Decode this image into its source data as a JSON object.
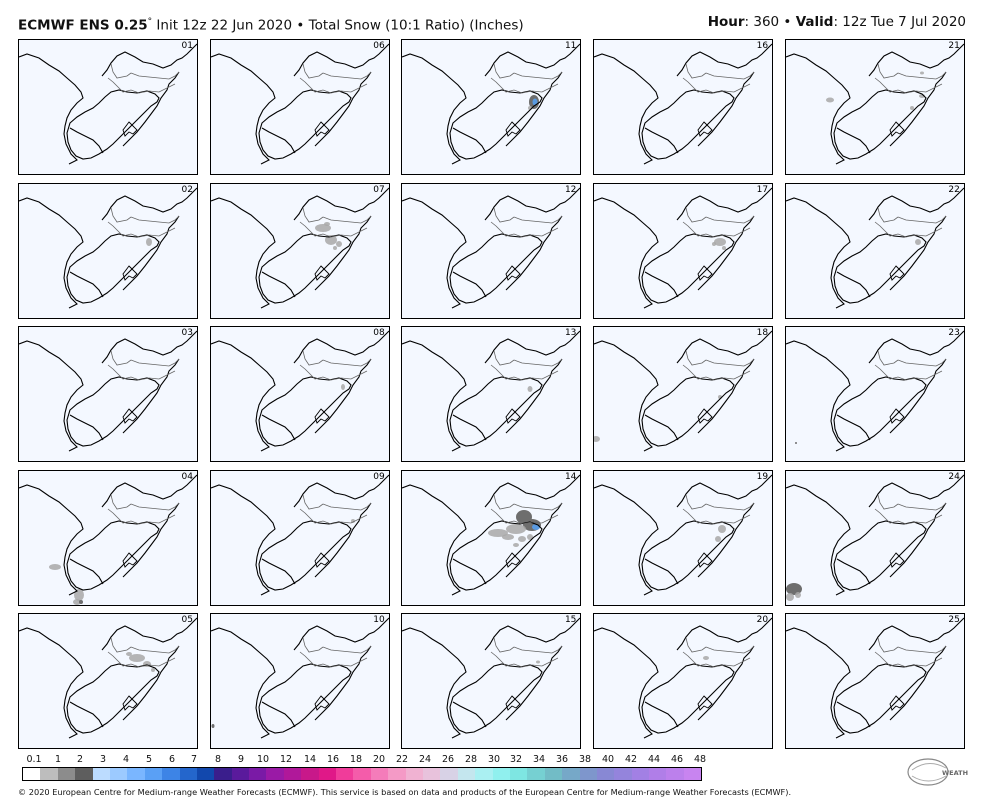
{
  "header": {
    "model": "ECMWF ENS 0.25",
    "degree": "°",
    "init": " Init 12z 22 Jun 2020 • Total Snow (10:1 Ratio) (Inches)",
    "hour_label": "Hour",
    "hour_value": ": 360 • ",
    "valid_label": "Valid",
    "valid_value": ": 12z Tue 7 Jul 2020"
  },
  "members": [
    "01",
    "06",
    "11",
    "16",
    "21",
    "02",
    "07",
    "12",
    "17",
    "22",
    "03",
    "08",
    "13",
    "18",
    "23",
    "04",
    "09",
    "14",
    "19",
    "24",
    "05",
    "10",
    "15",
    "20",
    "25"
  ],
  "colorbar": {
    "labels": [
      "0.1",
      "1",
      "2",
      "3",
      "4",
      "5",
      "6",
      "7",
      "8",
      "9",
      "10",
      "12",
      "14",
      "16",
      "18",
      "20",
      "22",
      "24",
      "26",
      "28",
      "30",
      "32",
      "34",
      "36",
      "38",
      "40",
      "42",
      "44",
      "46",
      "48"
    ],
    "colors": [
      "#ffffff",
      "#bdbdbd",
      "#8c8c8c",
      "#5e5e5e",
      "#bcdcff",
      "#9ccaff",
      "#7ab6ff",
      "#5aa0f5",
      "#3d84e6",
      "#2466cc",
      "#1248ad",
      "#3a1e8c",
      "#5a1a9c",
      "#7a1aa6",
      "#9a1aa6",
      "#b0189a",
      "#c8188a",
      "#e01888",
      "#f03c9a",
      "#f45caa",
      "#f47cba",
      "#f49ac6",
      "#f0b2d2",
      "#e8c2dc",
      "#d8d2e6",
      "#c4e6ee",
      "#aaf0f2",
      "#90f0ee",
      "#7ee6e2",
      "#76d0d2",
      "#72bcc6",
      "#76a8c8",
      "#7e96cc",
      "#8888d4",
      "#9484dc",
      "#a280e4",
      "#b07ee8",
      "#bc80ec",
      "#c884f0"
    ]
  },
  "footer": "© 2020 European Centre for Medium-range Weather Forecasts (ECMWF). This service is based on data and products of the European Centre for Medium-range Weather Forecasts (ECMWF).",
  "logo_text": "WEATHERBELL",
  "colors": {
    "map_background": "#f4f8ff",
    "snow_light": "#a8a8a8",
    "snow_mid": "#6e6e6e",
    "snow_heavy": "#5a9ae0"
  }
}
